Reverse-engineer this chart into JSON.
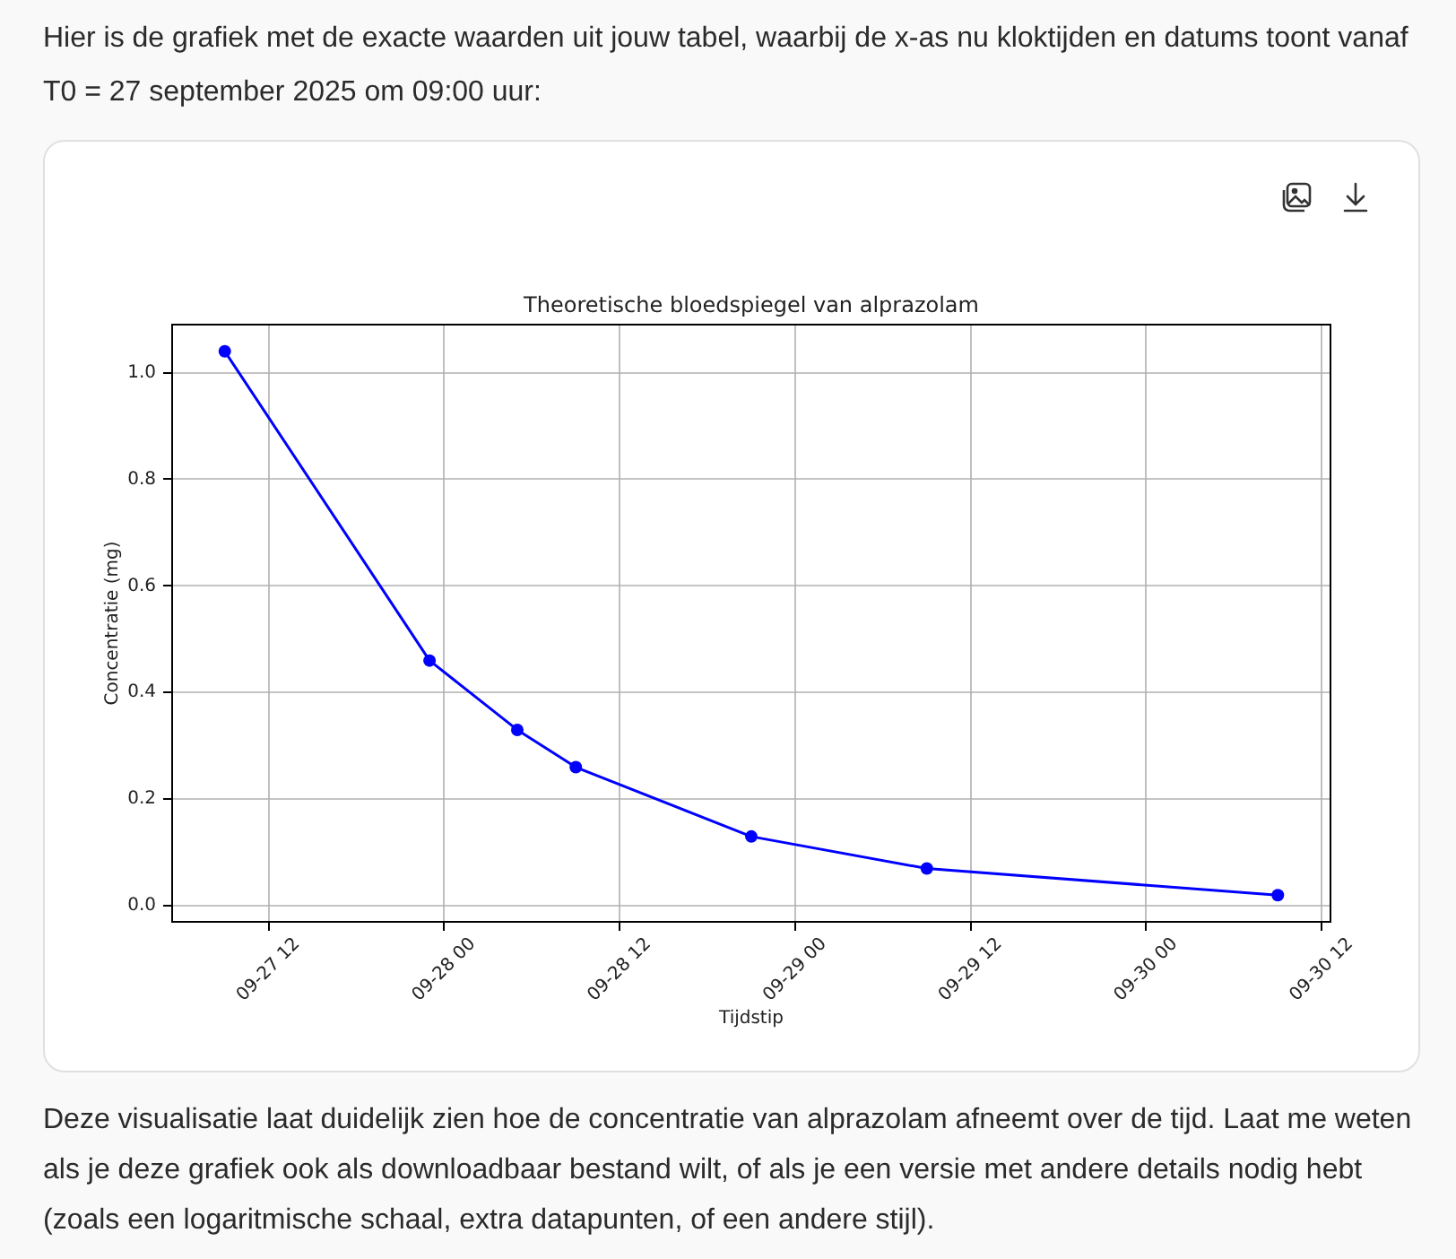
{
  "chart_data": {
    "type": "line",
    "title": "Theoretische bloedspiegel van alprazolam",
    "xlabel": "Tijdstip",
    "ylabel": "Concentratie (mg)",
    "annotations": [
      "Hier is de grafiek met de exacte waarden uit jouw tabel, waarbij de x-as nu kloktijden en datums toont vanaf T0 = 27 september 2025 om 09:00 uur:",
      "Deze visualisatie laat duidelijk zien hoe de concentratie van alprazolam afneemt over de tijd. Laat me weten als je deze grafiek ook als downloadbaar bestand wilt, of als je een versie met andere details nodig hebt (zoals een logaritmische schaal, extra datapunten, of een andere stijl)."
    ],
    "x": [
      "2025-09-27T09:00",
      "2025-09-27T23:00",
      "2025-09-28T05:00",
      "2025-09-28T09:00",
      "2025-09-28T21:00",
      "2025-09-29T09:00",
      "2025-09-30T09:00"
    ],
    "values": [
      1.04,
      0.46,
      0.33,
      0.26,
      0.13,
      0.07,
      0.02
    ],
    "color": "#0000ff",
    "xlim": [
      "2025-09-27T05:24",
      "2025-09-30T12:36"
    ],
    "xticks": [
      {
        "value": "2025-09-27T12:00",
        "label": "09-27 12"
      },
      {
        "value": "2025-09-28T00:00",
        "label": "09-28 00"
      },
      {
        "value": "2025-09-28T12:00",
        "label": "09-28 12"
      },
      {
        "value": "2025-09-29T00:00",
        "label": "09-29 00"
      },
      {
        "value": "2025-09-29T12:00",
        "label": "09-29 12"
      },
      {
        "value": "2025-09-30T00:00",
        "label": "09-30 00"
      },
      {
        "value": "2025-09-30T12:00",
        "label": "09-30 12"
      }
    ],
    "ylim": [
      -0.03,
      1.09
    ],
    "yticks": [
      {
        "value": 0,
        "label": "0.0"
      },
      0.2,
      0.4,
      0.6,
      0.8,
      {
        "value": 1,
        "label": "1.0"
      }
    ],
    "grid": true,
    "marker": "circle",
    "line_style": "solid"
  }
}
